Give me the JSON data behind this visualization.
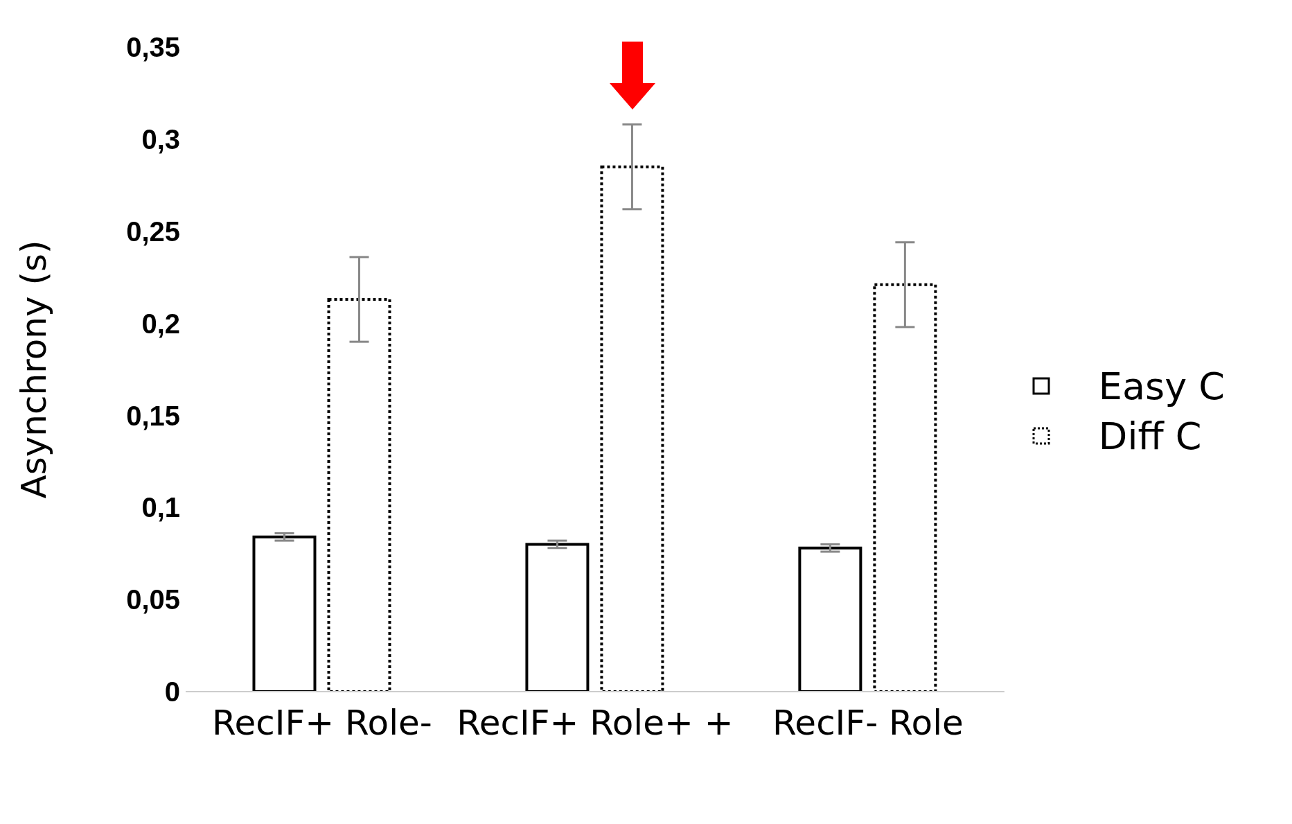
{
  "chart_data": {
    "type": "bar",
    "ylabel": "Asynchrony (s)",
    "categories": [
      "RecIF+ Role-",
      "RecIF+ Role+ +",
      "RecIF- Role"
    ],
    "series": [
      {
        "name": "Easy C",
        "color": "#000000",
        "line_style": "solid",
        "values": [
          0.084,
          0.08,
          0.078
        ],
        "errors": [
          0.002,
          0.002,
          0.002
        ]
      },
      {
        "name": "Diff C",
        "color": "#000000",
        "line_style": "dotted",
        "values": [
          0.213,
          0.285,
          0.221
        ],
        "errors": [
          0.023,
          0.023,
          0.023
        ]
      }
    ],
    "ylim": [
      0,
      0.35
    ],
    "yticks": [
      {
        "value": 0,
        "label": "0"
      },
      {
        "value": 0.05,
        "label": "0,05"
      },
      {
        "value": 0.1,
        "label": "0,1"
      },
      {
        "value": 0.15,
        "label": "0,15"
      },
      {
        "value": 0.2,
        "label": "0,2"
      },
      {
        "value": 0.25,
        "label": "0,25"
      },
      {
        "value": 0.3,
        "label": "0,3"
      },
      {
        "value": 0.35,
        "label": "0,35"
      }
    ],
    "grid": false,
    "legend": "right"
  }
}
